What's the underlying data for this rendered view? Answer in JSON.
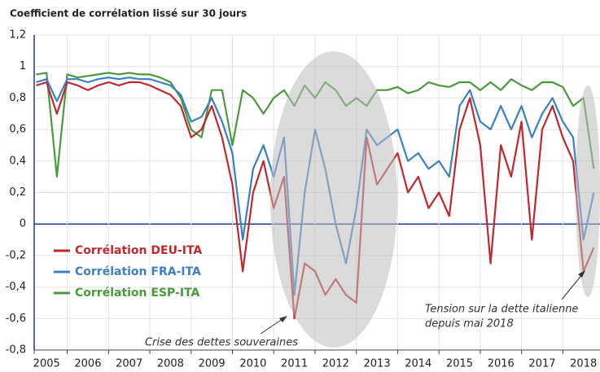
{
  "chart_data": {
    "type": "line",
    "title": "Coefficient de corrélation lissé sur 30 jours",
    "x": [
      2005.25,
      2005.5,
      2005.75,
      2006,
      2006.25,
      2006.5,
      2006.75,
      2007,
      2007.25,
      2007.5,
      2007.75,
      2008,
      2008.25,
      2008.5,
      2008.75,
      2009,
      2009.25,
      2009.5,
      2009.75,
      2010,
      2010.25,
      2010.5,
      2010.75,
      2011,
      2011.25,
      2011.5,
      2011.75,
      2012,
      2012.25,
      2012.5,
      2012.75,
      2013,
      2013.25,
      2013.5,
      2013.75,
      2014,
      2014.25,
      2014.5,
      2014.75,
      2015,
      2015.25,
      2015.5,
      2015.75,
      2016,
      2016.25,
      2016.5,
      2016.75,
      2017,
      2017.25,
      2017.5,
      2017.75,
      2018,
      2018.25,
      2018.5,
      2018.75
    ],
    "series": [
      {
        "name": "Corrélation DEU-ITA",
        "color": "#c0282d",
        "values": [
          0.88,
          0.9,
          0.7,
          0.9,
          0.88,
          0.85,
          0.88,
          0.9,
          0.88,
          0.9,
          0.9,
          0.88,
          0.85,
          0.82,
          0.75,
          0.55,
          0.6,
          0.75,
          0.55,
          0.25,
          -0.3,
          0.2,
          0.4,
          0.1,
          0.3,
          -0.6,
          -0.25,
          -0.3,
          -0.45,
          -0.35,
          -0.45,
          -0.5,
          0.55,
          0.25,
          0.35,
          0.45,
          0.2,
          0.3,
          0.1,
          0.2,
          0.05,
          0.6,
          0.8,
          0.5,
          -0.25,
          0.5,
          0.3,
          0.65,
          -0.1,
          0.6,
          0.75,
          0.55,
          0.4,
          -0.3,
          -0.15
        ]
      },
      {
        "name": "Corrélation FRA-ITA",
        "color": "#3b7fc4",
        "values": [
          0.9,
          0.92,
          0.78,
          0.92,
          0.92,
          0.9,
          0.92,
          0.93,
          0.92,
          0.93,
          0.92,
          0.92,
          0.9,
          0.88,
          0.82,
          0.65,
          0.68,
          0.8,
          0.65,
          0.45,
          -0.1,
          0.35,
          0.5,
          0.3,
          0.55,
          -0.45,
          0.2,
          0.6,
          0.35,
          0.0,
          -0.25,
          0.1,
          0.6,
          0.5,
          0.55,
          0.6,
          0.4,
          0.45,
          0.35,
          0.4,
          0.3,
          0.75,
          0.85,
          0.65,
          0.6,
          0.75,
          0.6,
          0.75,
          0.55,
          0.7,
          0.8,
          0.65,
          0.55,
          -0.1,
          0.2
        ]
      },
      {
        "name": "Corrélation ESP-ITA",
        "color": "#4a9a3c",
        "values": [
          0.95,
          0.96,
          0.3,
          0.95,
          0.93,
          0.94,
          0.95,
          0.96,
          0.95,
          0.96,
          0.95,
          0.95,
          0.93,
          0.9,
          0.8,
          0.6,
          0.55,
          0.85,
          0.85,
          0.5,
          0.85,
          0.8,
          0.7,
          0.8,
          0.85,
          0.75,
          0.88,
          0.8,
          0.9,
          0.85,
          0.75,
          0.8,
          0.75,
          0.85,
          0.85,
          0.87,
          0.83,
          0.85,
          0.9,
          0.88,
          0.87,
          0.9,
          0.9,
          0.85,
          0.9,
          0.85,
          0.92,
          0.88,
          0.85,
          0.9,
          0.9,
          0.87,
          0.75,
          0.8,
          0.35
        ]
      }
    ],
    "xlim": [
      2005.2,
      2018.9
    ],
    "xticks": [
      2005,
      2006,
      2007,
      2008,
      2009,
      2010,
      2011,
      2012,
      2013,
      2014,
      2015,
      2016,
      2017,
      2018
    ],
    "ylim": [
      -0.8,
      1.2
    ],
    "yticks": [
      {
        "value": -0.8,
        "label": "-0,8"
      },
      {
        "value": -0.6,
        "label": "-0,6"
      },
      {
        "value": -0.4,
        "label": "-0,4"
      },
      {
        "value": -0.2,
        "label": "-0,2"
      },
      0,
      {
        "value": 0.2,
        "label": "0,2"
      },
      {
        "value": 0.4,
        "label": "0,4"
      },
      {
        "value": 0.6,
        "label": "0,6"
      },
      {
        "value": 0.8,
        "label": "0,8"
      },
      1,
      {
        "value": 1.2,
        "label": "1,2"
      }
    ],
    "grid": true,
    "annotations": [
      "Crise des dettes souveraines",
      "Tension sur la dette italienne",
      "depuis mai 2018"
    ]
  }
}
